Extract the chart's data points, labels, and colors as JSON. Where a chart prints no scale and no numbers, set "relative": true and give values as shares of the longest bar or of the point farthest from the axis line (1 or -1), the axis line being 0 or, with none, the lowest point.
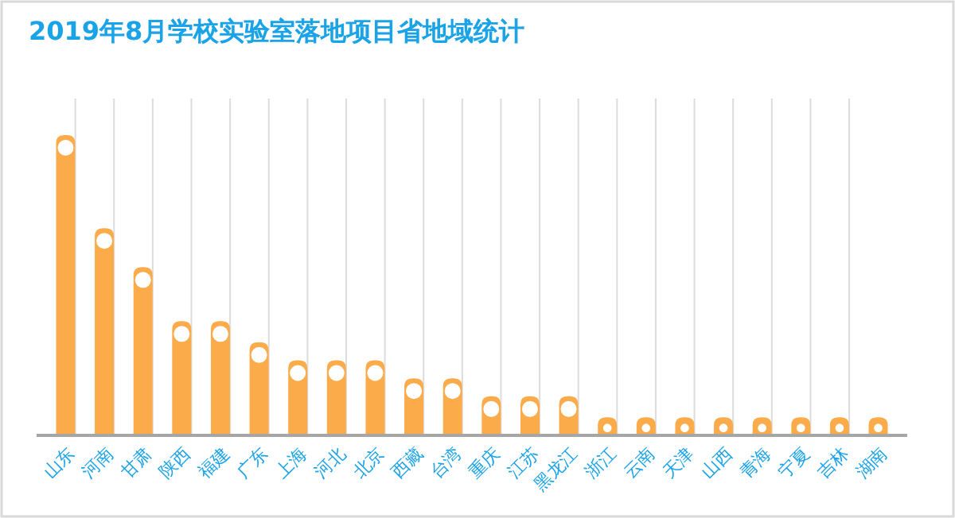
{
  "chart_data": {
    "type": "bar",
    "title": "2019年8月学校实验室落地项目省地域统计",
    "relative": true,
    "grid": "x",
    "color": "#fbab4a",
    "categories": [
      "山东",
      "河南",
      "甘肃",
      "陕西",
      "福建",
      "广东",
      "上海",
      "河北",
      "北京",
      "西藏",
      "台湾",
      "重庆",
      "江苏",
      "黑龙江",
      "浙江",
      "云南",
      "天津",
      "山西",
      "青海",
      "宁夏",
      "吉林",
      "湖南"
    ],
    "values": [
      1,
      0.69,
      0.56,
      0.38,
      0.38,
      0.31,
      0.25,
      0.25,
      0.25,
      0.19,
      0.19,
      0.13,
      0.13,
      0.13,
      0.06,
      0.06,
      0.06,
      0.06,
      0.06,
      0.06,
      0.06,
      0.06
    ]
  }
}
